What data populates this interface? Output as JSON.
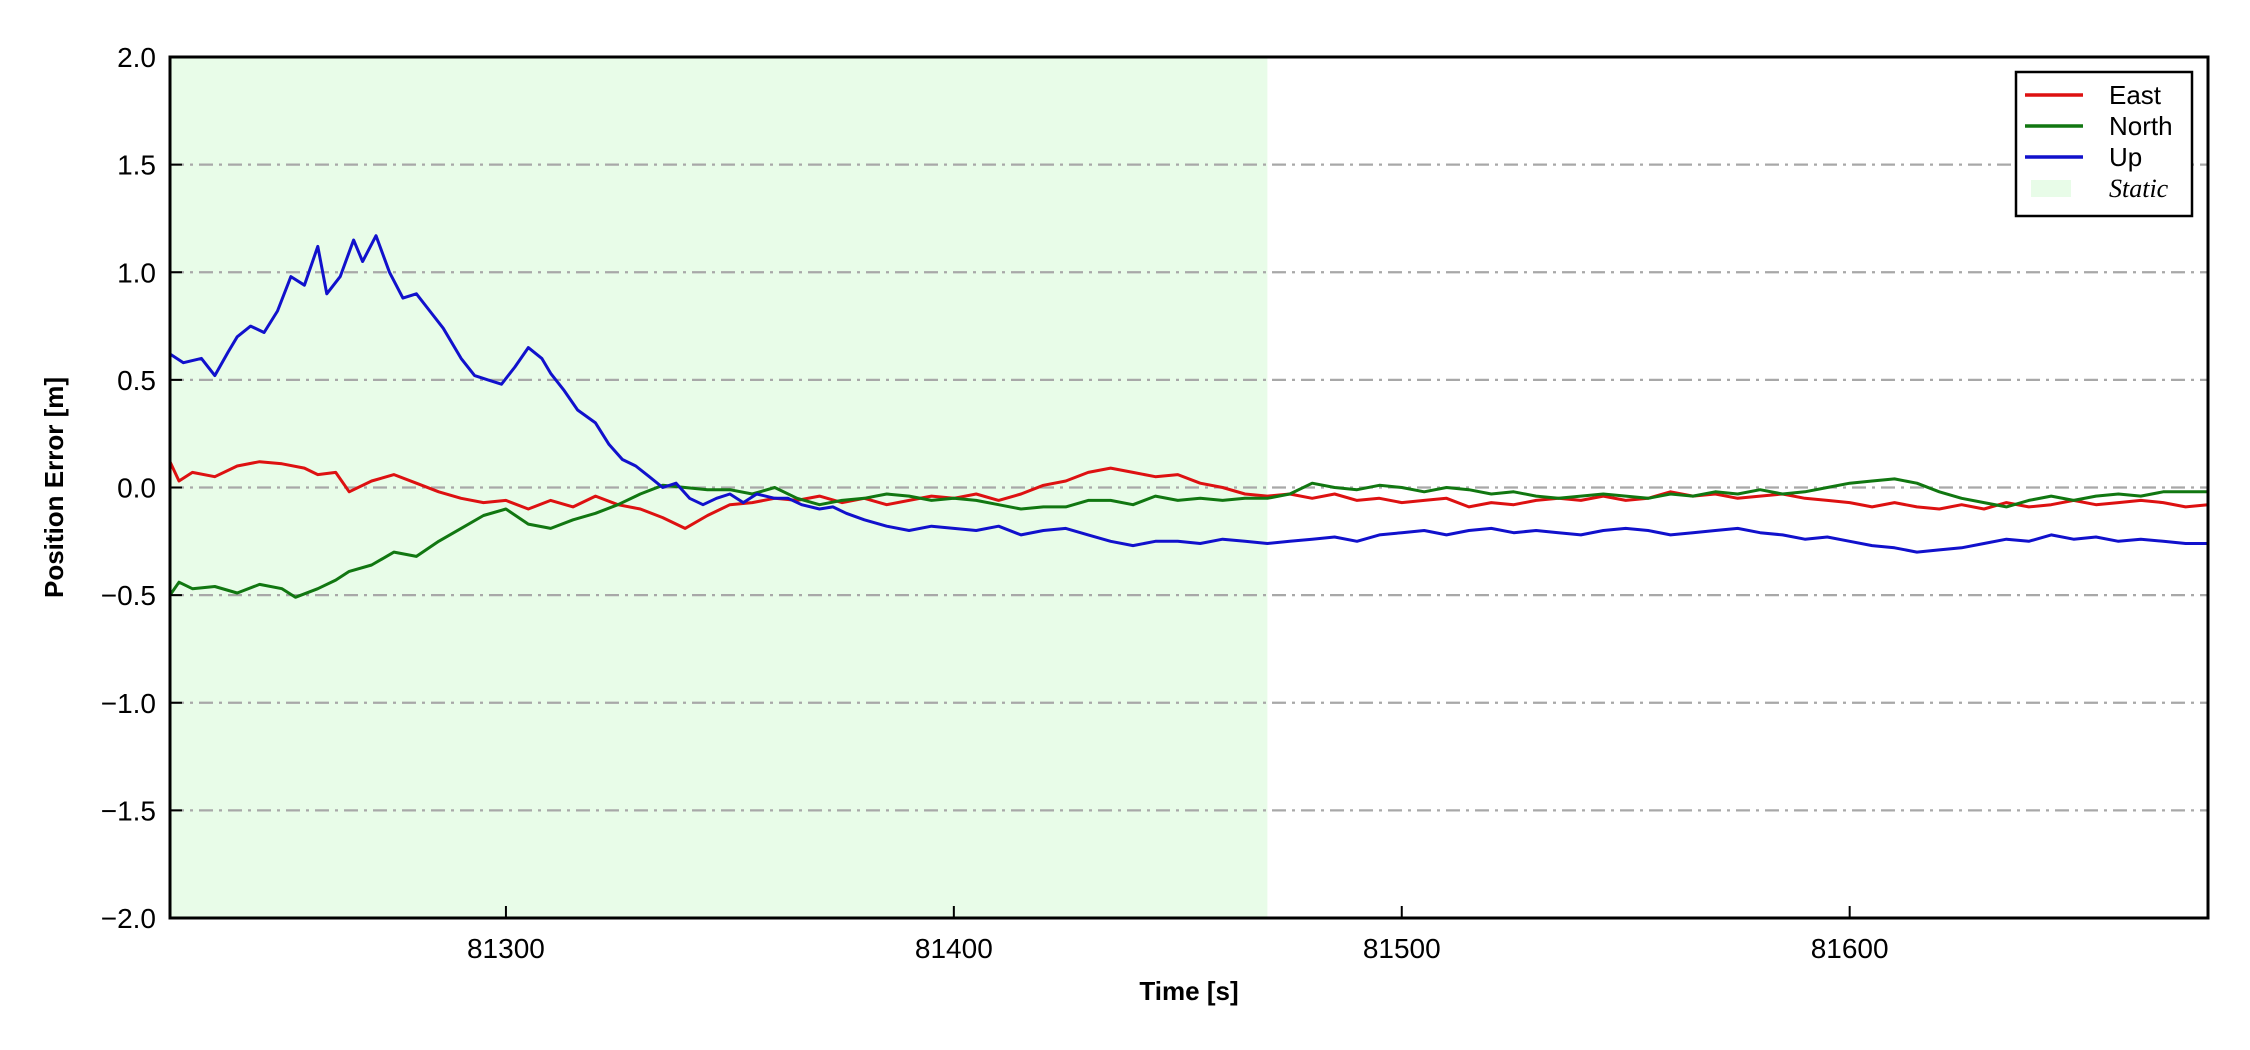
{
  "chart_data": {
    "type": "line",
    "title": "",
    "xlabel": "Time [s]",
    "ylabel": "Position Error [m]",
    "xlim": [
      81225,
      81680
    ],
    "ylim": [
      -2.0,
      2.0
    ],
    "x_ticks": [
      81300,
      81400,
      81500,
      81600
    ],
    "y_ticks": [
      2.0,
      1.5,
      1.0,
      0.5,
      0.0,
      -0.5,
      -1.0,
      -1.5,
      -2.0
    ],
    "x_tick_labels": [
      "81300",
      "81400",
      "81500",
      "81600"
    ],
    "y_tick_labels": [
      "2.0",
      "1.5",
      "1.0",
      "0.5",
      "0.0",
      "−0.5",
      "−1.0",
      "−1.5",
      "−2.0"
    ],
    "grid": "horizontal dash-dot",
    "legend_position": "top-right",
    "static_region": {
      "label": "Static",
      "x_start": 81225,
      "x_end": 81470,
      "color": "#e8fce8"
    },
    "series": [
      {
        "name": "East",
        "color": "#dd1111",
        "points": [
          [
            81225,
            0.12
          ],
          [
            81227,
            0.03
          ],
          [
            81230,
            0.07
          ],
          [
            81235,
            0.05
          ],
          [
            81240,
            0.1
          ],
          [
            81245,
            0.12
          ],
          [
            81250,
            0.11
          ],
          [
            81255,
            0.09
          ],
          [
            81258,
            0.06
          ],
          [
            81262,
            0.07
          ],
          [
            81265,
            -0.02
          ],
          [
            81270,
            0.03
          ],
          [
            81275,
            0.06
          ],
          [
            81280,
            0.02
          ],
          [
            81285,
            -0.02
          ],
          [
            81290,
            -0.05
          ],
          [
            81295,
            -0.07
          ],
          [
            81300,
            -0.06
          ],
          [
            81305,
            -0.1
          ],
          [
            81310,
            -0.06
          ],
          [
            81315,
            -0.09
          ],
          [
            81320,
            -0.04
          ],
          [
            81325,
            -0.08
          ],
          [
            81330,
            -0.1
          ],
          [
            81335,
            -0.14
          ],
          [
            81340,
            -0.19
          ],
          [
            81345,
            -0.13
          ],
          [
            81350,
            -0.08
          ],
          [
            81355,
            -0.07
          ],
          [
            81360,
            -0.05
          ],
          [
            81365,
            -0.06
          ],
          [
            81370,
            -0.04
          ],
          [
            81375,
            -0.07
          ],
          [
            81380,
            -0.05
          ],
          [
            81385,
            -0.08
          ],
          [
            81390,
            -0.06
          ],
          [
            81395,
            -0.04
          ],
          [
            81400,
            -0.05
          ],
          [
            81405,
            -0.03
          ],
          [
            81410,
            -0.06
          ],
          [
            81415,
            -0.03
          ],
          [
            81420,
            0.01
          ],
          [
            81425,
            0.03
          ],
          [
            81430,
            0.07
          ],
          [
            81435,
            0.09
          ],
          [
            81440,
            0.07
          ],
          [
            81445,
            0.05
          ],
          [
            81450,
            0.06
          ],
          [
            81455,
            0.02
          ],
          [
            81460,
            0.0
          ],
          [
            81465,
            -0.03
          ],
          [
            81470,
            -0.04
          ],
          [
            81475,
            -0.03
          ],
          [
            81480,
            -0.05
          ],
          [
            81485,
            -0.03
          ],
          [
            81490,
            -0.06
          ],
          [
            81495,
            -0.05
          ],
          [
            81500,
            -0.07
          ],
          [
            81505,
            -0.06
          ],
          [
            81510,
            -0.05
          ],
          [
            81515,
            -0.09
          ],
          [
            81520,
            -0.07
          ],
          [
            81525,
            -0.08
          ],
          [
            81530,
            -0.06
          ],
          [
            81535,
            -0.05
          ],
          [
            81540,
            -0.06
          ],
          [
            81545,
            -0.04
          ],
          [
            81550,
            -0.06
          ],
          [
            81555,
            -0.05
          ],
          [
            81560,
            -0.02
          ],
          [
            81565,
            -0.04
          ],
          [
            81570,
            -0.03
          ],
          [
            81575,
            -0.05
          ],
          [
            81580,
            -0.04
          ],
          [
            81585,
            -0.03
          ],
          [
            81590,
            -0.05
          ],
          [
            81595,
            -0.06
          ],
          [
            81600,
            -0.07
          ],
          [
            81605,
            -0.09
          ],
          [
            81610,
            -0.07
          ],
          [
            81615,
            -0.09
          ],
          [
            81620,
            -0.1
          ],
          [
            81625,
            -0.08
          ],
          [
            81630,
            -0.1
          ],
          [
            81635,
            -0.07
          ],
          [
            81640,
            -0.09
          ],
          [
            81645,
            -0.08
          ],
          [
            81650,
            -0.06
          ],
          [
            81655,
            -0.08
          ],
          [
            81660,
            -0.07
          ],
          [
            81665,
            -0.06
          ],
          [
            81670,
            -0.07
          ],
          [
            81675,
            -0.09
          ],
          [
            81680,
            -0.08
          ]
        ]
      },
      {
        "name": "North",
        "color": "#117711",
        "points": [
          [
            81225,
            -0.5
          ],
          [
            81227,
            -0.44
          ],
          [
            81230,
            -0.47
          ],
          [
            81235,
            -0.46
          ],
          [
            81240,
            -0.49
          ],
          [
            81245,
            -0.45
          ],
          [
            81250,
            -0.47
          ],
          [
            81253,
            -0.51
          ],
          [
            81258,
            -0.47
          ],
          [
            81262,
            -0.43
          ],
          [
            81265,
            -0.39
          ],
          [
            81270,
            -0.36
          ],
          [
            81275,
            -0.3
          ],
          [
            81280,
            -0.32
          ],
          [
            81285,
            -0.25
          ],
          [
            81290,
            -0.19
          ],
          [
            81295,
            -0.13
          ],
          [
            81300,
            -0.1
          ],
          [
            81305,
            -0.17
          ],
          [
            81310,
            -0.19
          ],
          [
            81315,
            -0.15
          ],
          [
            81320,
            -0.12
          ],
          [
            81325,
            -0.08
          ],
          [
            81330,
            -0.03
          ],
          [
            81335,
            0.01
          ],
          [
            81340,
            0.0
          ],
          [
            81345,
            -0.01
          ],
          [
            81350,
            -0.01
          ],
          [
            81355,
            -0.03
          ],
          [
            81360,
            0.0
          ],
          [
            81365,
            -0.05
          ],
          [
            81370,
            -0.08
          ],
          [
            81375,
            -0.06
          ],
          [
            81380,
            -0.05
          ],
          [
            81385,
            -0.03
          ],
          [
            81390,
            -0.04
          ],
          [
            81395,
            -0.06
          ],
          [
            81400,
            -0.05
          ],
          [
            81405,
            -0.06
          ],
          [
            81410,
            -0.08
          ],
          [
            81415,
            -0.1
          ],
          [
            81420,
            -0.09
          ],
          [
            81425,
            -0.09
          ],
          [
            81430,
            -0.06
          ],
          [
            81435,
            -0.06
          ],
          [
            81440,
            -0.08
          ],
          [
            81445,
            -0.04
          ],
          [
            81450,
            -0.06
          ],
          [
            81455,
            -0.05
          ],
          [
            81460,
            -0.06
          ],
          [
            81465,
            -0.05
          ],
          [
            81470,
            -0.05
          ],
          [
            81475,
            -0.03
          ],
          [
            81480,
            0.02
          ],
          [
            81485,
            0.0
          ],
          [
            81490,
            -0.01
          ],
          [
            81495,
            0.01
          ],
          [
            81500,
            0.0
          ],
          [
            81505,
            -0.02
          ],
          [
            81510,
            0.0
          ],
          [
            81515,
            -0.01
          ],
          [
            81520,
            -0.03
          ],
          [
            81525,
            -0.02
          ],
          [
            81530,
            -0.04
          ],
          [
            81535,
            -0.05
          ],
          [
            81540,
            -0.04
          ],
          [
            81545,
            -0.03
          ],
          [
            81550,
            -0.04
          ],
          [
            81555,
            -0.05
          ],
          [
            81560,
            -0.03
          ],
          [
            81565,
            -0.04
          ],
          [
            81570,
            -0.02
          ],
          [
            81575,
            -0.03
          ],
          [
            81580,
            -0.01
          ],
          [
            81585,
            -0.03
          ],
          [
            81590,
            -0.02
          ],
          [
            81595,
            0.0
          ],
          [
            81600,
            0.02
          ],
          [
            81605,
            0.03
          ],
          [
            81610,
            0.04
          ],
          [
            81615,
            0.02
          ],
          [
            81620,
            -0.02
          ],
          [
            81625,
            -0.05
          ],
          [
            81630,
            -0.07
          ],
          [
            81635,
            -0.09
          ],
          [
            81640,
            -0.06
          ],
          [
            81645,
            -0.04
          ],
          [
            81650,
            -0.06
          ],
          [
            81655,
            -0.04
          ],
          [
            81660,
            -0.03
          ],
          [
            81665,
            -0.04
          ],
          [
            81670,
            -0.02
          ],
          [
            81675,
            -0.02
          ],
          [
            81680,
            -0.02
          ]
        ]
      },
      {
        "name": "Up",
        "color": "#1111cc",
        "points": [
          [
            81225,
            0.62
          ],
          [
            81228,
            0.58
          ],
          [
            81232,
            0.6
          ],
          [
            81235,
            0.52
          ],
          [
            81238,
            0.63
          ],
          [
            81240,
            0.7
          ],
          [
            81243,
            0.75
          ],
          [
            81246,
            0.72
          ],
          [
            81249,
            0.82
          ],
          [
            81252,
            0.98
          ],
          [
            81255,
            0.94
          ],
          [
            81258,
            1.12
          ],
          [
            81260,
            0.9
          ],
          [
            81263,
            0.98
          ],
          [
            81266,
            1.15
          ],
          [
            81268,
            1.05
          ],
          [
            81271,
            1.17
          ],
          [
            81274,
            1.0
          ],
          [
            81277,
            0.88
          ],
          [
            81280,
            0.9
          ],
          [
            81283,
            0.82
          ],
          [
            81286,
            0.74
          ],
          [
            81290,
            0.6
          ],
          [
            81293,
            0.52
          ],
          [
            81296,
            0.5
          ],
          [
            81299,
            0.48
          ],
          [
            81302,
            0.56
          ],
          [
            81305,
            0.65
          ],
          [
            81308,
            0.6
          ],
          [
            81310,
            0.53
          ],
          [
            81313,
            0.45
          ],
          [
            81316,
            0.36
          ],
          [
            81320,
            0.3
          ],
          [
            81323,
            0.2
          ],
          [
            81326,
            0.13
          ],
          [
            81329,
            0.1
          ],
          [
            81332,
            0.05
          ],
          [
            81335,
            0.0
          ],
          [
            81338,
            0.02
          ],
          [
            81341,
            -0.05
          ],
          [
            81344,
            -0.08
          ],
          [
            81347,
            -0.05
          ],
          [
            81350,
            -0.03
          ],
          [
            81353,
            -0.07
          ],
          [
            81356,
            -0.03
          ],
          [
            81360,
            -0.05
          ],
          [
            81363,
            -0.05
          ],
          [
            81366,
            -0.08
          ],
          [
            81370,
            -0.1
          ],
          [
            81373,
            -0.09
          ],
          [
            81376,
            -0.12
          ],
          [
            81380,
            -0.15
          ],
          [
            81385,
            -0.18
          ],
          [
            81390,
            -0.2
          ],
          [
            81395,
            -0.18
          ],
          [
            81400,
            -0.19
          ],
          [
            81405,
            -0.2
          ],
          [
            81410,
            -0.18
          ],
          [
            81415,
            -0.22
          ],
          [
            81420,
            -0.2
          ],
          [
            81425,
            -0.19
          ],
          [
            81430,
            -0.22
          ],
          [
            81435,
            -0.25
          ],
          [
            81440,
            -0.27
          ],
          [
            81445,
            -0.25
          ],
          [
            81450,
            -0.25
          ],
          [
            81455,
            -0.26
          ],
          [
            81460,
            -0.24
          ],
          [
            81465,
            -0.25
          ],
          [
            81470,
            -0.26
          ],
          [
            81475,
            -0.25
          ],
          [
            81480,
            -0.24
          ],
          [
            81485,
            -0.23
          ],
          [
            81490,
            -0.25
          ],
          [
            81495,
            -0.22
          ],
          [
            81500,
            -0.21
          ],
          [
            81505,
            -0.2
          ],
          [
            81510,
            -0.22
          ],
          [
            81515,
            -0.2
          ],
          [
            81520,
            -0.19
          ],
          [
            81525,
            -0.21
          ],
          [
            81530,
            -0.2
          ],
          [
            81535,
            -0.21
          ],
          [
            81540,
            -0.22
          ],
          [
            81545,
            -0.2
          ],
          [
            81550,
            -0.19
          ],
          [
            81555,
            -0.2
          ],
          [
            81560,
            -0.22
          ],
          [
            81565,
            -0.21
          ],
          [
            81570,
            -0.2
          ],
          [
            81575,
            -0.19
          ],
          [
            81580,
            -0.21
          ],
          [
            81585,
            -0.22
          ],
          [
            81590,
            -0.24
          ],
          [
            81595,
            -0.23
          ],
          [
            81600,
            -0.25
          ],
          [
            81605,
            -0.27
          ],
          [
            81610,
            -0.28
          ],
          [
            81615,
            -0.3
          ],
          [
            81620,
            -0.29
          ],
          [
            81625,
            -0.28
          ],
          [
            81630,
            -0.26
          ],
          [
            81635,
            -0.24
          ],
          [
            81640,
            -0.25
          ],
          [
            81645,
            -0.22
          ],
          [
            81650,
            -0.24
          ],
          [
            81655,
            -0.23
          ],
          [
            81660,
            -0.25
          ],
          [
            81665,
            -0.24
          ],
          [
            81670,
            -0.25
          ],
          [
            81675,
            -0.26
          ],
          [
            81680,
            -0.26
          ]
        ]
      }
    ]
  }
}
